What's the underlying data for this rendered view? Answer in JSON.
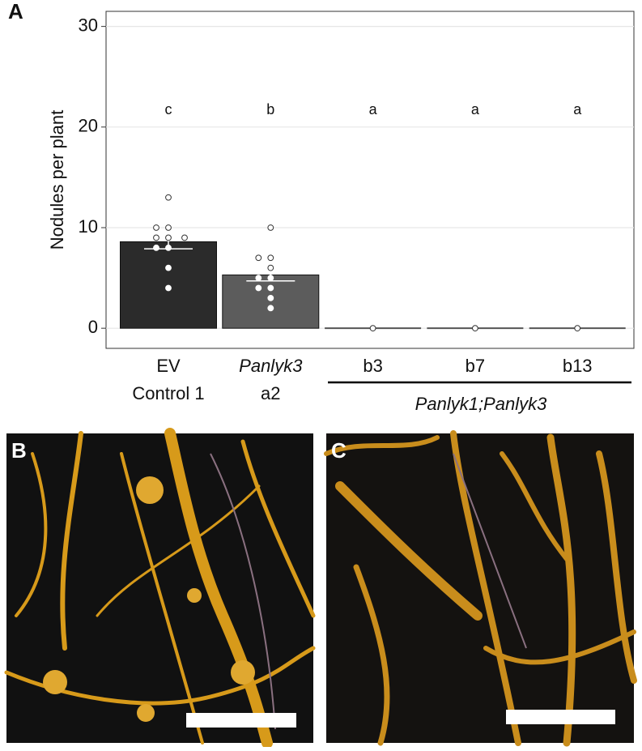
{
  "chart_data": {
    "type": "bar",
    "panel_label": "A",
    "ylabel": "Nodules per plant",
    "categories": [
      [
        "EV",
        "Control 1"
      ],
      [
        "Panlyk3",
        "a2"
      ],
      [
        "b3"
      ],
      [
        "b7"
      ],
      [
        "b13"
      ]
    ],
    "group_label": "Panlyk1;Panlyk3",
    "values": [
      8.6,
      5.3,
      0,
      0,
      0
    ],
    "errors": [
      0.7,
      0.6,
      0,
      0,
      0
    ],
    "colors": [
      "#2b2b2b",
      "#5c5c5c",
      "#5c5c5c",
      "#5c5c5c",
      "#5c5c5c"
    ],
    "significance": [
      "c",
      "b",
      "a",
      "a",
      "a"
    ],
    "points": [
      [
        13,
        10,
        10,
        9,
        9,
        9,
        8,
        8,
        6,
        4
      ],
      [
        10,
        7,
        7,
        6,
        5,
        5,
        4,
        4,
        3,
        2
      ],
      [
        0
      ],
      [
        0
      ],
      [
        0
      ]
    ],
    "ylim": [
      -2,
      31.5
    ],
    "yticks": [
      0,
      10,
      20,
      30
    ],
    "grid": true
  },
  "photos": [
    {
      "label": "B"
    },
    {
      "label": "C"
    }
  ]
}
